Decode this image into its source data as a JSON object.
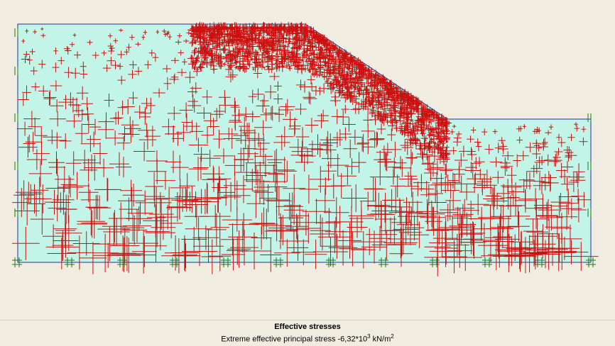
{
  "plot": {
    "title": "Effective stresses",
    "stress_prefix": "Extreme effective principal stress ",
    "stress_value": "-6,32*10",
    "stress_exponent": "3",
    "stress_unit": " kN/m",
    "stress_unit_exponent": "2"
  },
  "colors": {
    "background": "#f1ece0",
    "soil_fill": "#c3f4e8",
    "boundary": "#2b2b9a",
    "stress_cross": "#cc1111",
    "fixity": "#1a7a1a"
  },
  "icons": {
    "horizontal_fixity": "vertical-fixity-icon",
    "total_fixity": "total-fixity-icon"
  }
}
